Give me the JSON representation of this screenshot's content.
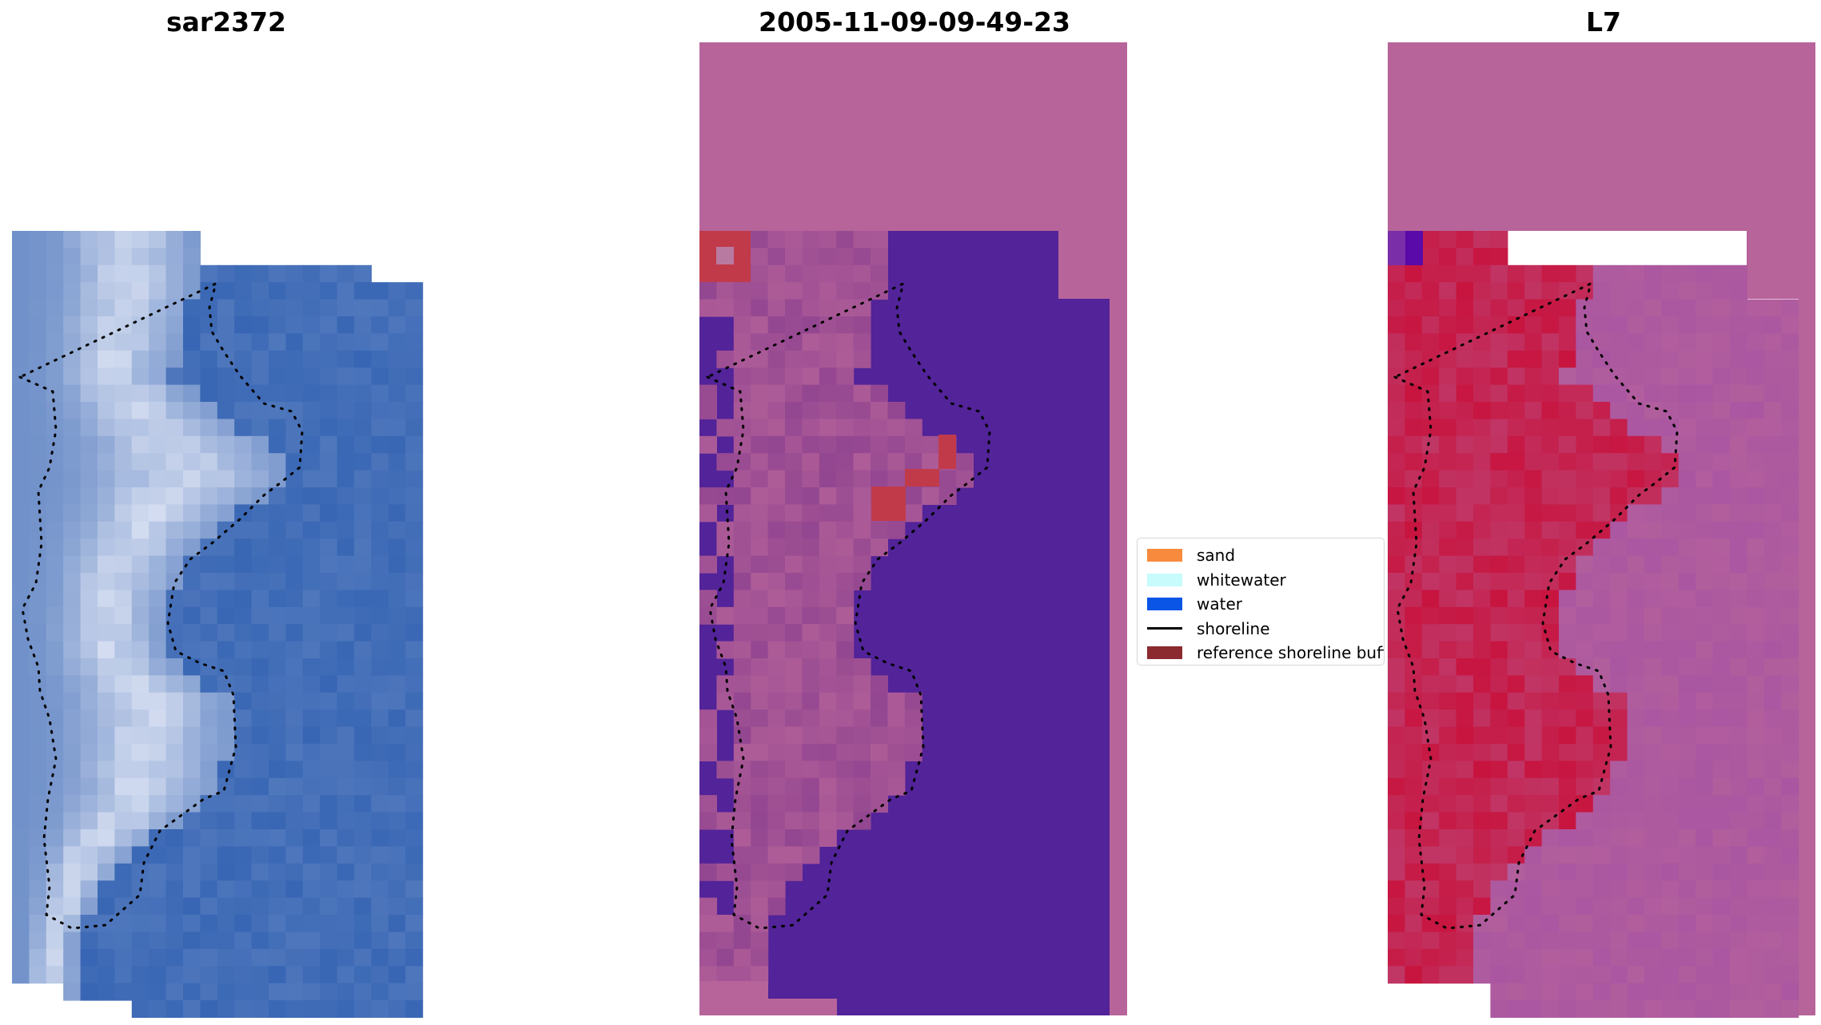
{
  "panels": {
    "left": {
      "title": "sar2372"
    },
    "center": {
      "title": "2005-11-09-09-49-23"
    },
    "right": {
      "title": "L7"
    }
  },
  "legend": {
    "items": [
      {
        "label": "sand",
        "kind": "patch",
        "color": "#f78a3c"
      },
      {
        "label": "whitewater",
        "kind": "patch",
        "color": "#c8fbfb"
      },
      {
        "label": "water",
        "kind": "patch",
        "color": "#0a55e6"
      },
      {
        "label": "shoreline",
        "kind": "line",
        "color": "#000000"
      },
      {
        "label": "reference shoreline buffer",
        "kind": "patch",
        "color": "#8b2a2f"
      }
    ]
  },
  "colors": {
    "sar_water": "#2f5fb0",
    "sar_bright": "#e8ecf8",
    "class_water": "#522399",
    "class_land": "#b7649a",
    "class_buffer": "#c13a4a",
    "l7_land": "#b7649a",
    "l7_bright": "#c8103a",
    "l7_water": "#a753a3"
  }
}
